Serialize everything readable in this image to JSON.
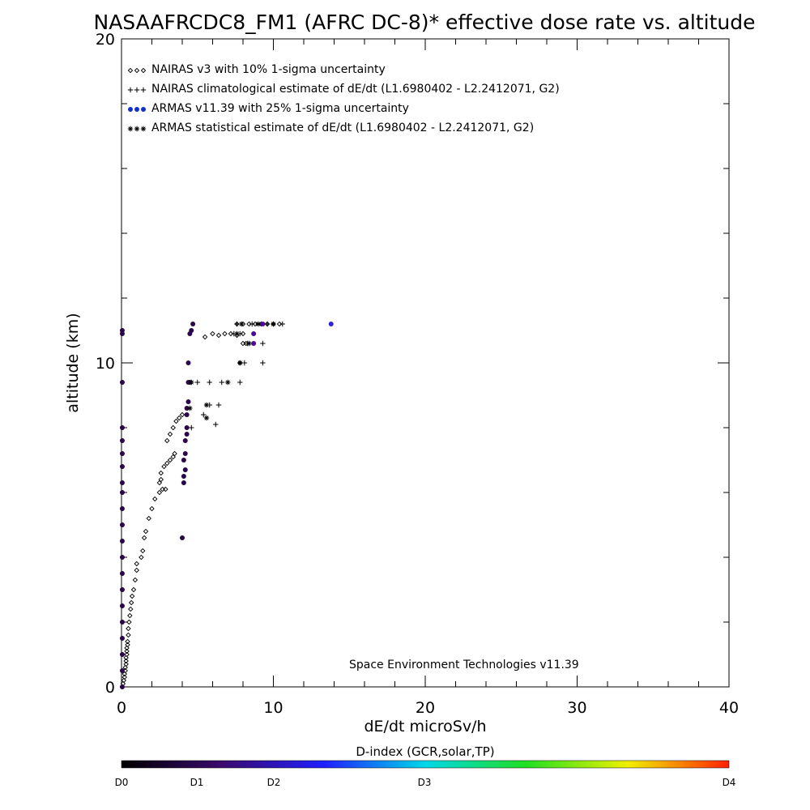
{
  "chart_data": {
    "type": "scatter",
    "title": "NASAAFRCDC8_FM1 (AFRC DC-8)* effective dose rate vs. altitude",
    "xlabel": "dE/dt microSv/h",
    "ylabel": "altitude (km)",
    "xlim": [
      0,
      40
    ],
    "ylim": [
      0,
      20
    ],
    "x_ticks": [
      "0",
      "10",
      "20",
      "30",
      "40"
    ],
    "y_ticks": [
      "0",
      "10",
      "20"
    ],
    "grid": false,
    "legend_position": "top-left",
    "legend": [
      {
        "label": "NAIRAS v3 with 10% 1-sigma uncertainty",
        "marker": "diamond",
        "color": "#000000"
      },
      {
        "label": "NAIRAS climatological estimate of dE/dt (L1.6980402 - L2.2412071, G2)",
        "marker": "plus",
        "color": "#000000"
      },
      {
        "label": "ARMAS v11.39 with 25% 1-sigma uncertainty",
        "marker": "dot",
        "color": "#1030c8"
      },
      {
        "label": "ARMAS statistical estimate of dE/dt (L1.6980402 - L2.2412071, G2)",
        "marker": "asterisk",
        "color": "#000000"
      }
    ],
    "annotation": "Space Environment Technologies v11.39",
    "colorbar": {
      "title": "D-index (GCR,solar,TP)",
      "labels": [
        "D0",
        "D1",
        "D2",
        "D3",
        "D4"
      ],
      "colors": [
        "#000000",
        "#3a0a6e",
        "#2020ff",
        "#00d8e8",
        "#20e020",
        "#f0f000",
        "#ff2000"
      ]
    },
    "series": [
      {
        "name": "NAIRAS v3 with 10% 1-sigma uncertainty",
        "marker": "diamond",
        "points": [
          [
            0.05,
            0.0
          ],
          [
            0.1,
            0.1
          ],
          [
            0.15,
            0.2
          ],
          [
            0.2,
            0.3
          ],
          [
            0.2,
            0.4
          ],
          [
            0.25,
            0.5
          ],
          [
            0.25,
            0.6
          ],
          [
            0.3,
            0.7
          ],
          [
            0.3,
            0.8
          ],
          [
            0.3,
            0.9
          ],
          [
            0.35,
            1.0
          ],
          [
            0.35,
            1.1
          ],
          [
            0.35,
            1.2
          ],
          [
            0.4,
            1.3
          ],
          [
            0.4,
            1.4
          ],
          [
            0.45,
            1.6
          ],
          [
            0.45,
            1.8
          ],
          [
            0.5,
            2.0
          ],
          [
            0.55,
            2.2
          ],
          [
            0.6,
            2.4
          ],
          [
            0.65,
            2.6
          ],
          [
            0.7,
            2.8
          ],
          [
            0.8,
            3.0
          ],
          [
            0.9,
            3.3
          ],
          [
            1.0,
            3.6
          ],
          [
            1.0,
            3.8
          ],
          [
            1.3,
            4.0
          ],
          [
            1.4,
            4.2
          ],
          [
            1.5,
            4.6
          ],
          [
            1.6,
            4.8
          ],
          [
            1.8,
            5.2
          ],
          [
            2.0,
            5.5
          ],
          [
            2.2,
            5.8
          ],
          [
            2.5,
            6.0
          ],
          [
            2.7,
            6.1
          ],
          [
            2.9,
            6.1
          ],
          [
            2.5,
            6.3
          ],
          [
            2.6,
            6.4
          ],
          [
            2.6,
            6.6
          ],
          [
            2.8,
            6.8
          ],
          [
            3.0,
            6.9
          ],
          [
            3.2,
            7.0
          ],
          [
            3.4,
            7.1
          ],
          [
            3.5,
            7.2
          ],
          [
            3.0,
            7.6
          ],
          [
            3.2,
            7.8
          ],
          [
            3.4,
            8.0
          ],
          [
            3.6,
            8.2
          ],
          [
            3.8,
            8.3
          ],
          [
            4.0,
            8.4
          ],
          [
            5.5,
            10.8
          ],
          [
            6.0,
            10.9
          ],
          [
            6.4,
            10.85
          ],
          [
            6.8,
            10.9
          ],
          [
            7.2,
            10.9
          ],
          [
            7.6,
            10.85
          ],
          [
            8.0,
            10.9
          ],
          [
            8.0,
            10.6
          ],
          [
            8.2,
            10.6
          ],
          [
            7.8,
            10.0
          ],
          [
            7.6,
            11.2
          ],
          [
            8.0,
            11.2
          ],
          [
            8.4,
            11.2
          ],
          [
            8.8,
            11.2
          ],
          [
            9.2,
            11.2
          ],
          [
            9.6,
            11.2
          ],
          [
            10.0,
            11.2
          ],
          [
            10.4,
            11.2
          ]
        ]
      },
      {
        "name": "NAIRAS climatological estimate of dE/dt (L1.6980402 - L2.2412071, G2)",
        "marker": "plus",
        "points": [
          [
            4.6,
            8.0
          ],
          [
            5.4,
            8.4
          ],
          [
            6.2,
            8.1
          ],
          [
            5.8,
            8.7
          ],
          [
            6.4,
            8.7
          ],
          [
            5.0,
            9.4
          ],
          [
            5.8,
            9.4
          ],
          [
            6.6,
            9.4
          ],
          [
            7.8,
            9.4
          ],
          [
            8.1,
            10.0
          ],
          [
            9.3,
            10.0
          ],
          [
            8.3,
            10.6
          ],
          [
            9.3,
            10.6
          ],
          [
            7.4,
            10.9
          ],
          [
            7.8,
            10.9
          ],
          [
            7.6,
            11.2
          ],
          [
            8.6,
            11.2
          ],
          [
            9.6,
            11.2
          ],
          [
            10.6,
            11.2
          ]
        ]
      },
      {
        "name": "ARMAS v11.39 with 25% 1-sigma uncertainty",
        "marker": "dot",
        "points": [
          [
            0.05,
            0.0
          ],
          [
            0.05,
            0.5
          ],
          [
            0.05,
            1.0
          ],
          [
            0.05,
            1.5
          ],
          [
            0.05,
            2.0
          ],
          [
            0.05,
            2.5
          ],
          [
            0.05,
            3.0
          ],
          [
            0.05,
            3.5
          ],
          [
            0.05,
            4.0
          ],
          [
            0.05,
            4.5
          ],
          [
            0.05,
            5.0
          ],
          [
            0.05,
            5.5
          ],
          [
            0.05,
            6.0
          ],
          [
            0.05,
            6.3
          ],
          [
            0.05,
            6.8
          ],
          [
            0.05,
            7.2
          ],
          [
            0.05,
            7.6
          ],
          [
            0.05,
            8.0
          ],
          [
            0.05,
            9.4
          ],
          [
            0.05,
            10.9
          ],
          [
            0.05,
            11.0
          ],
          [
            4.0,
            4.6
          ],
          [
            4.1,
            6.3
          ],
          [
            4.1,
            6.5
          ],
          [
            4.2,
            6.7
          ],
          [
            4.1,
            7.0
          ],
          [
            4.2,
            7.2
          ],
          [
            4.2,
            7.6
          ],
          [
            4.3,
            7.8
          ],
          [
            4.3,
            8.0
          ],
          [
            4.3,
            8.4
          ],
          [
            4.3,
            8.6
          ],
          [
            4.4,
            8.8
          ],
          [
            4.4,
            9.4
          ],
          [
            4.5,
            9.4
          ],
          [
            4.4,
            10.0
          ],
          [
            4.5,
            10.9
          ],
          [
            4.6,
            11.0
          ],
          [
            4.7,
            11.2
          ],
          [
            8.7,
            10.6
          ],
          [
            8.7,
            10.9
          ],
          [
            9.3,
            11.2
          ],
          [
            13.8,
            11.2
          ]
        ]
      },
      {
        "name": "ARMAS statistical estimate of dE/dt (L1.6980402 - L2.2412071, G2)",
        "marker": "asterisk",
        "points": [
          [
            4.5,
            8.6
          ],
          [
            5.6,
            8.3
          ],
          [
            5.6,
            8.7
          ],
          [
            4.6,
            9.4
          ],
          [
            7.0,
            9.4
          ],
          [
            7.8,
            10.0
          ],
          [
            8.4,
            10.6
          ],
          [
            7.6,
            10.9
          ],
          [
            7.9,
            11.2
          ],
          [
            9.0,
            11.2
          ],
          [
            10.0,
            11.2
          ]
        ]
      }
    ]
  }
}
